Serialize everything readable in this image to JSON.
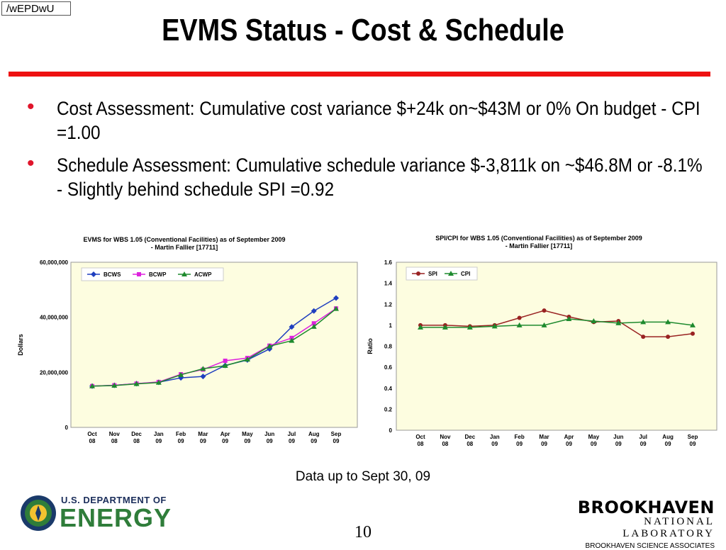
{
  "corner_tag": "/wEPDwU",
  "title": "EVMS Status - Cost & Schedule",
  "bullets": [
    {
      "text": "Cost  Assessment:  Cumulative cost variance $+24k on~$43M  or  0%  On budget - CPI =1.00"
    },
    {
      "text": "Schedule Assessment: Cumulative schedule variance $-3,811k on ~$46.8M or -8.1% - Slightly behind schedule  SPI =0.92"
    }
  ],
  "note": "Data up to Sept 30, 09",
  "page_number": "10",
  "footer": {
    "doe_line1": "U.S. DEPARTMENT OF",
    "doe_line2": "ENERGY",
    "bnl_line1": "BROOKHAVEN",
    "bnl_line2": "NATIONAL LABORATORY",
    "bnl_line3": "BROOKHAVEN SCIENCE ASSOCIATES"
  },
  "colors": {
    "accent_red": "#ee1111",
    "plot_bg": "#fdfde0"
  },
  "chart_data": [
    {
      "type": "line",
      "title": "EVMS for WBS 1.05 (Conventional Facilities) as of September 2009",
      "subtitle": "- Martin Fallier [17711]",
      "ylabel": "Dollars",
      "xlabel": "",
      "ylim": [
        0,
        60000000
      ],
      "yticks": [
        0,
        20000000,
        40000000,
        60000000
      ],
      "ytick_labels": [
        "0",
        "20,000,000",
        "40,000,000",
        "60,000,000"
      ],
      "categories": [
        "Oct 08",
        "Nov 08",
        "Dec 08",
        "Jan 09",
        "Feb 09",
        "Mar 09",
        "Apr 09",
        "May 09",
        "Jun 09",
        "Jul 09",
        "Aug 09",
        "Sep 09"
      ],
      "legend": "top-left",
      "series": [
        {
          "name": "BCWS",
          "color": "#1f3fbf",
          "marker": "diamond",
          "values": [
            15000000,
            15300000,
            15900000,
            16400000,
            18000000,
            18500000,
            22500000,
            24500000,
            28500000,
            36500000,
            42300000,
            47000000
          ]
        },
        {
          "name": "BCWP",
          "color": "#dd22dd",
          "marker": "square",
          "values": [
            15000000,
            15300000,
            15900000,
            16500000,
            19300000,
            21000000,
            24200000,
            25200000,
            29700000,
            32500000,
            37800000,
            43200000
          ]
        },
        {
          "name": "ACWP",
          "color": "#1e8a2e",
          "marker": "triangle",
          "values": [
            15000000,
            15200000,
            15800000,
            16300000,
            19100000,
            21300000,
            22400000,
            24700000,
            29500000,
            31500000,
            36600000,
            43100000
          ]
        }
      ]
    },
    {
      "type": "line",
      "title": "SPI/CPI for WBS 1.05 (Conventional Facilities) as of September 2009",
      "subtitle": "- Martin Fallier [17711]",
      "ylabel": "Ratio",
      "xlabel": "",
      "ylim": [
        0,
        1.6
      ],
      "yticks": [
        0,
        0.2,
        0.4,
        0.6,
        0.8,
        1,
        1.2,
        1.4,
        1.6
      ],
      "ytick_labels": [
        "0",
        "0.2",
        "0.4",
        "0.6",
        "0.8",
        "1",
        "1.2",
        "1.4",
        "1.6"
      ],
      "categories": [
        "Oct 08",
        "Nov 08",
        "Dec 08",
        "Jan 09",
        "Feb 09",
        "Mar 09",
        "Apr 09",
        "May 09",
        "Jun 09",
        "Jul 09",
        "Aug 09",
        "Sep 09"
      ],
      "legend": "top-left",
      "series": [
        {
          "name": "SPI",
          "color": "#992222",
          "marker": "circle",
          "values": [
            1.0,
            1.0,
            0.99,
            1.0,
            1.07,
            1.14,
            1.08,
            1.03,
            1.04,
            0.89,
            0.89,
            0.92
          ]
        },
        {
          "name": "CPI",
          "color": "#1e8a2e",
          "marker": "triangle",
          "values": [
            0.98,
            0.98,
            0.98,
            0.99,
            1.0,
            1.0,
            1.06,
            1.04,
            1.02,
            1.03,
            1.03,
            1.0
          ]
        }
      ]
    }
  ]
}
